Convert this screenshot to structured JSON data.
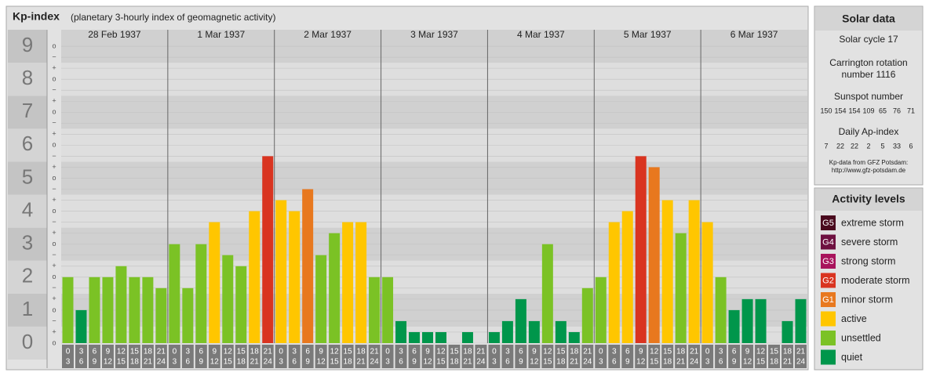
{
  "chart_data": {
    "type": "bar",
    "title": "Kp-index",
    "subtitle": "(planetary 3-hourly index of geomagnetic activity)",
    "ylim": [
      0,
      9.5
    ],
    "yticks": [
      0,
      1,
      2,
      3,
      4,
      5,
      6,
      7,
      8,
      9
    ],
    "minor_ticks": [
      {
        "value": 0,
        "label": "o"
      },
      {
        "value": 0.333,
        "label": "+"
      },
      {
        "value": 0.667,
        "label": "−"
      },
      {
        "value": 1,
        "label": "o"
      },
      {
        "value": 1.333,
        "label": "+"
      },
      {
        "value": 1.667,
        "label": "−"
      },
      {
        "value": 2,
        "label": "o"
      },
      {
        "value": 2.333,
        "label": "+"
      },
      {
        "value": 2.667,
        "label": "−"
      },
      {
        "value": 3,
        "label": "o"
      },
      {
        "value": 3.333,
        "label": "+"
      },
      {
        "value": 3.667,
        "label": "−"
      },
      {
        "value": 4,
        "label": "o"
      },
      {
        "value": 4.333,
        "label": "+"
      },
      {
        "value": 4.667,
        "label": "−"
      },
      {
        "value": 5,
        "label": "o"
      },
      {
        "value": 5.333,
        "label": "+"
      },
      {
        "value": 5.667,
        "label": "−"
      },
      {
        "value": 6,
        "label": "o"
      },
      {
        "value": 6.333,
        "label": "+"
      },
      {
        "value": 6.667,
        "label": "−"
      },
      {
        "value": 7,
        "label": "o"
      },
      {
        "value": 7.333,
        "label": "+"
      },
      {
        "value": 7.667,
        "label": "−"
      },
      {
        "value": 8,
        "label": "o"
      },
      {
        "value": 8.333,
        "label": "+"
      },
      {
        "value": 8.667,
        "label": "−"
      },
      {
        "value": 9,
        "label": "o"
      }
    ],
    "intervals": [
      [
        "0",
        "3"
      ],
      [
        "3",
        "6"
      ],
      [
        "6",
        "9"
      ],
      [
        "9",
        "12"
      ],
      [
        "12",
        "15"
      ],
      [
        "15",
        "18"
      ],
      [
        "18",
        "21"
      ],
      [
        "21",
        "24"
      ]
    ],
    "days": [
      {
        "date": "28 Feb 1937",
        "values": [
          2,
          1,
          2,
          2,
          2.333,
          2,
          2,
          1.667
        ],
        "colors": [
          "#7bc225",
          "#00964b",
          "#7bc225",
          "#7bc225",
          "#7bc225",
          "#7bc225",
          "#7bc225",
          "#7bc225"
        ]
      },
      {
        "date": "1 Mar 1937",
        "values": [
          3,
          1.667,
          3,
          3.667,
          2.667,
          2.333,
          4,
          5.667
        ],
        "colors": [
          "#7bc225",
          "#7bc225",
          "#7bc225",
          "#ffc600",
          "#7bc225",
          "#7bc225",
          "#ffc600",
          "#d93420"
        ]
      },
      {
        "date": "2 Mar 1937",
        "values": [
          4.333,
          4,
          4.667,
          2.667,
          3.333,
          3.667,
          3.667,
          2
        ],
        "colors": [
          "#ffc600",
          "#ffc600",
          "#e8781e",
          "#7bc225",
          "#7bc225",
          "#ffc600",
          "#ffc600",
          "#7bc225"
        ]
      },
      {
        "date": "3 Mar 1937",
        "values": [
          2,
          0.667,
          0.333,
          0.333,
          0.333,
          0,
          0.333,
          0
        ],
        "colors": [
          "#7bc225",
          "#00964b",
          "#00964b",
          "#00964b",
          "#00964b",
          "#00964b",
          "#00964b",
          "#00964b"
        ]
      },
      {
        "date": "4 Mar 1937",
        "values": [
          0.333,
          0.667,
          1.333,
          0.667,
          3,
          0.667,
          0.333,
          1.667
        ],
        "colors": [
          "#00964b",
          "#00964b",
          "#00964b",
          "#00964b",
          "#7bc225",
          "#00964b",
          "#00964b",
          "#7bc225"
        ]
      },
      {
        "date": "5 Mar 1937",
        "values": [
          2,
          3.667,
          4,
          5.667,
          5.333,
          4.333,
          3.333,
          4.333
        ],
        "colors": [
          "#7bc225",
          "#ffc600",
          "#ffc600",
          "#d93420",
          "#e8781e",
          "#ffc600",
          "#7bc225",
          "#ffc600"
        ]
      },
      {
        "date": "6 Mar 1937",
        "values": [
          3.667,
          2,
          1,
          1.333,
          1.333,
          0,
          0.667,
          1.333
        ],
        "colors": [
          "#ffc600",
          "#7bc225",
          "#00964b",
          "#00964b",
          "#00964b",
          "#00964b",
          "#00964b",
          "#00964b"
        ]
      }
    ]
  },
  "solar": {
    "title": "Solar data",
    "cycle": "Solar cycle 17",
    "carrington": [
      "Carrington rotation",
      "number 1116"
    ],
    "sunspot_label": "Sunspot number",
    "sunspot": [
      150,
      154,
      154,
      109,
      65,
      76,
      71
    ],
    "ap_label": "Daily Ap-index",
    "ap": [
      7,
      22,
      22,
      2,
      5,
      33,
      6
    ],
    "source": [
      "Kp-data from GFZ Potsdam:",
      "http://www.gfz-potsdam.de"
    ]
  },
  "levels": {
    "title": "Activity levels",
    "items": [
      {
        "badge": "G5",
        "label": "extreme storm",
        "color": "#4a0a1e"
      },
      {
        "badge": "G4",
        "label": "severe storm",
        "color": "#6e1040"
      },
      {
        "badge": "G3",
        "label": "strong storm",
        "color": "#a8135c"
      },
      {
        "badge": "G2",
        "label": "moderate storm",
        "color": "#d93420"
      },
      {
        "badge": "G1",
        "label": "minor storm",
        "color": "#e8781e"
      },
      {
        "label": "active",
        "color": "#ffc600"
      },
      {
        "label": "unsettled",
        "color": "#7bc225"
      },
      {
        "label": "quiet",
        "color": "#00964b"
      }
    ]
  }
}
